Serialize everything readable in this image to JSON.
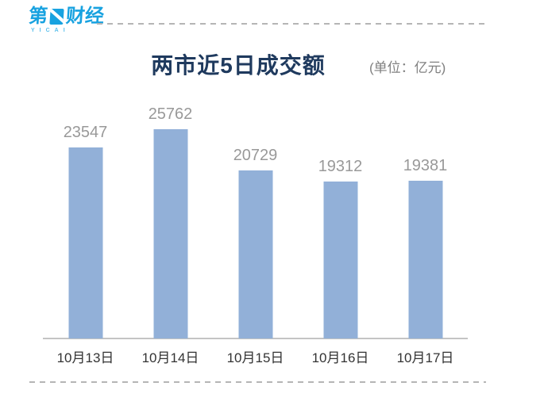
{
  "logo": {
    "brand_prefix": "第",
    "brand_suffix": "财经",
    "subtext": "YICAI",
    "color": "#18A2E0"
  },
  "chart_data": {
    "type": "bar",
    "title": "两市近5日成交额",
    "unit_label": "(单位：亿元)",
    "categories": [
      "10月13日",
      "10月14日",
      "10月15日",
      "10月16日",
      "10月17日"
    ],
    "values": [
      23547,
      25762,
      20729,
      19312,
      19381
    ],
    "xlabel": "",
    "ylabel": "",
    "ylim": [
      0,
      26000
    ],
    "grid": false,
    "legend": false,
    "value_labels_shown": true,
    "bar_color": "#92B0D8",
    "value_label_color": "#999999",
    "category_label_color": "#333333"
  },
  "colors": {
    "background": "#FFFFFF",
    "title_text": "#1F3A5E",
    "unit_text": "#808080",
    "axis_line": "#C4C4C4",
    "dashed_divider": "#B5B5B5",
    "logo_blue": "#18A2E0",
    "logo_sub_blue": "#5BC0EC"
  }
}
